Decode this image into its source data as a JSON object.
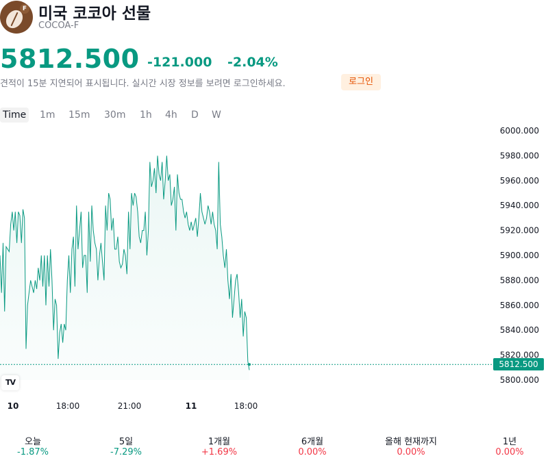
{
  "header": {
    "logo_icon": "cocoa-bean-icon",
    "logo_badge": "F",
    "title": "미국 코코아 선물",
    "ticker": "COCOA-F"
  },
  "quote": {
    "price": "5812.500",
    "change": "-121.000",
    "change_percent": "-2.04%",
    "color": "#089981"
  },
  "notice": {
    "text": "견적이 15분 지연되어 표시됩니다. 실시간 시장 정보를 보려면 로그인하세요.",
    "login_label": "로그인"
  },
  "tabs": [
    "Time",
    "1m",
    "15m",
    "30m",
    "1h",
    "4h",
    "D",
    "W"
  ],
  "active_tab": "Time",
  "chart_data": {
    "type": "area",
    "y_ticks": [
      "6000.000",
      "5980.000",
      "5960.000",
      "5940.000",
      "5920.000",
      "5900.000",
      "5880.000",
      "5860.000",
      "5840.000",
      "5820.000",
      "5800.000"
    ],
    "ylim": [
      5800,
      6000
    ],
    "x_ticks": [
      {
        "label": "10",
        "bold": true
      },
      {
        "label": "18:00",
        "bold": false
      },
      {
        "label": "21:00",
        "bold": false
      },
      {
        "label": "11",
        "bold": true
      },
      {
        "label": "18:00",
        "bold": false
      }
    ],
    "last_price": 5812.5,
    "last_price_label": "5812.500",
    "line_color": "#089981",
    "values": [
      5900,
      5870,
      5910,
      5855,
      5907,
      5905,
      5903,
      5925,
      5935,
      5920,
      5935,
      5910,
      5935,
      5932,
      5910,
      5937,
      5930,
      5825,
      5860,
      5870,
      5880,
      5875,
      5870,
      5880,
      5873,
      5890,
      5880,
      5900,
      5875,
      5900,
      5860,
      5900,
      5875,
      5905,
      5880,
      5840,
      5865,
      5860,
      5817,
      5838,
      5845,
      5830,
      5845,
      5840,
      5880,
      5900,
      5870,
      5905,
      5915,
      5875,
      5940,
      5905,
      5920,
      5935,
      5890,
      5900,
      5900,
      5870,
      5935,
      5895,
      5940,
      5920,
      5910,
      5905,
      5880,
      5900,
      5910,
      5895,
      5880,
      5940,
      5920,
      5950,
      5945,
      5920,
      5930,
      5905,
      5905,
      5915,
      5895,
      5890,
      5893,
      5905,
      5900,
      5885,
      5935,
      5905,
      5950,
      5940,
      5950,
      5947,
      5935,
      5915,
      5910,
      5920,
      5920,
      5935,
      5900,
      5920,
      5975,
      5955,
      5960,
      5970,
      5950,
      5980,
      5965,
      5960,
      5975,
      5945,
      5960,
      5980,
      5960,
      5965,
      5940,
      5945,
      5955,
      5920,
      5965,
      5950,
      5945,
      5945,
      5935,
      5930,
      5935,
      5925,
      5920,
      5927,
      5920,
      5925,
      5930,
      5915,
      5930,
      5950,
      5935,
      5930,
      5925,
      5930,
      5940,
      5935,
      5925,
      5935,
      5925,
      5920,
      5905,
      5975,
      5925,
      5915,
      5900,
      5890,
      5905,
      5880,
      5865,
      5885,
      5850,
      5865,
      5880,
      5885,
      5870,
      5850,
      5865,
      5835,
      5855,
      5850,
      5815,
      5808
    ]
  },
  "performance": [
    {
      "label": "오늘",
      "value": "-1.87%",
      "color": "#089981"
    },
    {
      "label": "5일",
      "value": "-7.29%",
      "color": "#089981"
    },
    {
      "label": "1개월",
      "value": "+1.69%",
      "color": "#f23645"
    },
    {
      "label": "6개월",
      "value": "0.00%",
      "color": "#f23645"
    },
    {
      "label": "올해 현재까지",
      "value": "0.00%",
      "color": "#f23645"
    },
    {
      "label": "1년",
      "value": "0.00%",
      "color": "#f23645"
    }
  ]
}
